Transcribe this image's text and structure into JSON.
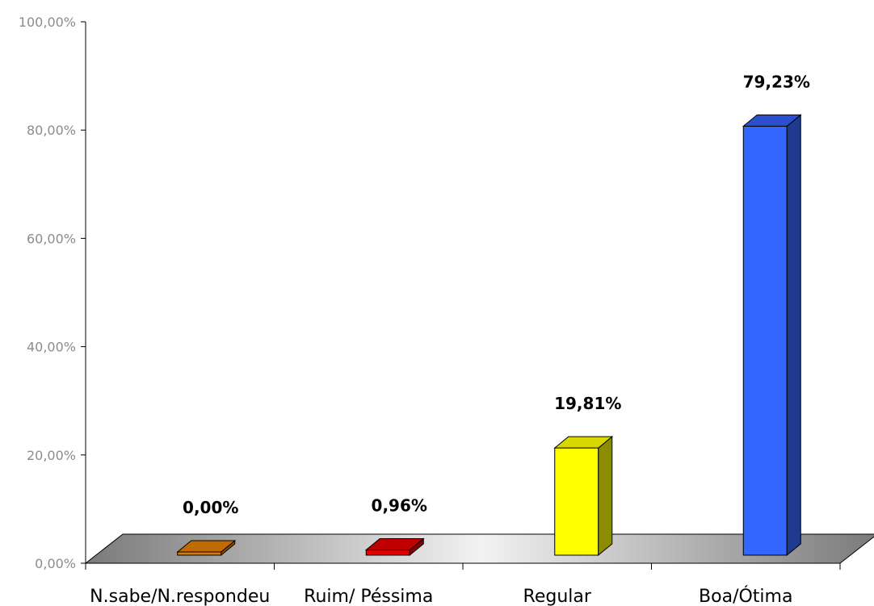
{
  "chart_data": {
    "type": "bar",
    "categories": [
      "N.sabe/N.respondeu",
      "Ruim/ Péssima",
      "Regular",
      "Boa/Ótima"
    ],
    "values": [
      0.0,
      0.96,
      19.81,
      79.23
    ],
    "data_labels": [
      "0,00%",
      "0,96%",
      "19,81%",
      "79,23%"
    ],
    "yticks": [
      0,
      20,
      40,
      60,
      80,
      100
    ],
    "ytick_labels": [
      "0,00%",
      "20,00%",
      "40,00%",
      "60,00%",
      "80,00%",
      "100,00%"
    ],
    "ylim": [
      0,
      100
    ],
    "title": "",
    "xlabel": "",
    "ylabel": "",
    "grid": false,
    "legend": "none",
    "three_d": true,
    "colors": [
      "#d97a00",
      "#e00000",
      "#ffff00",
      "#3366ff"
    ],
    "side_colors": [
      "#8a4e00",
      "#8a0000",
      "#8c8c00",
      "#1f3a8f"
    ],
    "top_colors": [
      "#c06a00",
      "#c00000",
      "#d8d800",
      "#2a50d0"
    ]
  }
}
